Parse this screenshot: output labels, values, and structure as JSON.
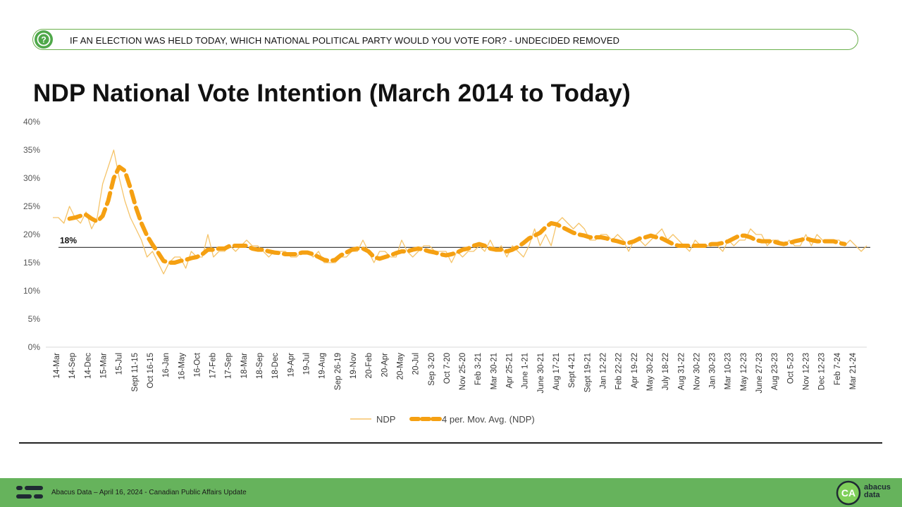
{
  "question": {
    "icon": "question-mark-icon",
    "text": "IF AN ELECTION WAS HELD TODAY, WHICH NATIONAL POLITICAL PARTY WOULD YOU VOTE FOR? - UNDECIDED REMOVED"
  },
  "title": "NDP National Vote Intention (March 2014 to Today)",
  "chart_data": {
    "type": "line",
    "title": "NDP National Vote Intention (March 2014 to Today)",
    "ylim": [
      0,
      40
    ],
    "yticks": [
      "0%",
      "5%",
      "10%",
      "15%",
      "20%",
      "25%",
      "30%",
      "35%",
      "40%"
    ],
    "grid": false,
    "legend_position": "bottom",
    "xticklabels": [
      "14-Mar",
      "14-Sep",
      "14-Dec",
      "15-Mar",
      "15-Jul",
      "Sept 11-15",
      "Oct 16-15",
      "16-Jan",
      "16-May",
      "16-Oct",
      "17-Feb",
      "17-Sep",
      "18-Mar",
      "18-Sep",
      "18-Dec",
      "19-Apr",
      "19-Jul",
      "19-Aug",
      "Sep 26-19",
      "19-Nov",
      "20-Feb",
      "20-Apr",
      "20-May",
      "20-Jul",
      "Sep 3-20",
      "Oct 7-20",
      "Nov 25-20",
      "Feb 3-21",
      "Mar 30-21",
      "Apr 25-21",
      "June 1-21",
      "June 30-21",
      "Aug 17-21",
      "Sept 4-21",
      "Sept 19-21",
      "Jan 12-22",
      "Feb 22-22",
      "Apr 19-22",
      "May 30-22",
      "July 18-22",
      "Aug 31-22",
      "Nov 30-22",
      "Jan 30-23",
      "Mar 10-23",
      "May 12-23",
      "June 27-23",
      "Aug 23-23",
      "Oct 5-23",
      "Nov 12-23",
      "Dec 12-23",
      "Feb 7-24",
      "Mar 21-24"
    ],
    "reference_line": {
      "value": 17.7,
      "label": "18%"
    },
    "series": [
      {
        "name": "NDP",
        "color": "#f5c46a",
        "style": "thin",
        "values": [
          23,
          23,
          22,
          25,
          23,
          22,
          24,
          21,
          23,
          29,
          32,
          35,
          30,
          26,
          23,
          21,
          19,
          16,
          17,
          15,
          13,
          15,
          16,
          16,
          14,
          17,
          16,
          16,
          20,
          16,
          17,
          17,
          18,
          17,
          18,
          19,
          18,
          18,
          17,
          16,
          17,
          17,
          17,
          16,
          16,
          17,
          17,
          16,
          17,
          15,
          15,
          15,
          16,
          16,
          17,
          17,
          19,
          17,
          15,
          17,
          17,
          16,
          16,
          19,
          17,
          16,
          17,
          18,
          18,
          17,
          17,
          17,
          15,
          17,
          16,
          17,
          17,
          18,
          17,
          19,
          17,
          18,
          16,
          18,
          17,
          16,
          18,
          21,
          18,
          20,
          18,
          22,
          23,
          22,
          21,
          22,
          21,
          19,
          19,
          20,
          20,
          19,
          20,
          19,
          17,
          19,
          19,
          18,
          19,
          20,
          21,
          19,
          20,
          19,
          18,
          17,
          19,
          18,
          18,
          18,
          18,
          17,
          19,
          18,
          19,
          19,
          21,
          20,
          20,
          18,
          19,
          19,
          18,
          19,
          18,
          18,
          20,
          18,
          20,
          19,
          19,
          19,
          19,
          18,
          19,
          18,
          17,
          18
        ]
      },
      {
        "name": "4 per. Mov. Avg. (NDP)",
        "color": "#f5a012",
        "style": "dashed",
        "values": [
          null,
          null,
          null,
          22.8,
          23.0,
          23.3,
          23.5,
          22.8,
          22.3,
          23.3,
          26.0,
          30.0,
          32.0,
          31.3,
          28.3,
          24.8,
          22.0,
          19.8,
          18.2,
          16.8,
          15.3,
          15.0,
          15.0,
          15.3,
          15.5,
          15.8,
          16.0,
          16.5,
          17.3,
          17.3,
          17.5,
          17.5,
          18.0,
          18.0,
          18.0,
          18.0,
          17.5,
          17.3,
          17.3,
          17.0,
          16.8,
          16.7,
          16.5,
          16.5,
          16.5,
          16.8,
          16.8,
          16.5,
          16.0,
          15.5,
          15.3,
          15.5,
          16.3,
          16.8,
          17.3,
          17.5,
          17.5,
          17.0,
          16.0,
          15.7,
          16.0,
          16.3,
          16.7,
          17.0,
          17.0,
          17.3,
          17.5,
          17.3,
          17.0,
          16.8,
          16.5,
          16.3,
          16.5,
          16.8,
          17.3,
          17.5,
          18.0,
          18.3,
          18.0,
          17.5,
          17.3,
          17.3,
          17.0,
          17.3,
          17.8,
          18.5,
          19.3,
          19.8,
          20.3,
          21.3,
          22.0,
          21.8,
          21.3,
          20.8,
          20.3,
          20.0,
          19.8,
          19.5,
          19.5,
          19.5,
          19.3,
          19.0,
          18.8,
          18.5,
          18.5,
          18.8,
          19.3,
          19.5,
          19.8,
          19.5,
          19.3,
          18.8,
          18.3,
          18.0,
          18.0,
          18.0,
          18.0,
          18.0,
          18.0,
          18.3,
          18.3,
          18.5,
          18.8,
          19.3,
          19.8,
          19.8,
          19.5,
          19.0,
          18.8,
          18.8,
          18.8,
          18.5,
          18.3,
          18.5,
          18.8,
          19.0,
          19.3,
          19.0,
          18.8,
          18.8,
          18.8,
          18.8,
          18.5,
          18.3
        ]
      }
    ]
  },
  "footer": {
    "text": "Abacus Data – April 16, 2024 - Canadian Public Affairs Update",
    "logo_icon": "abacus-ca-logo",
    "logo_word_1": "abacus",
    "logo_word_2": "data",
    "background": "#66b35c"
  }
}
